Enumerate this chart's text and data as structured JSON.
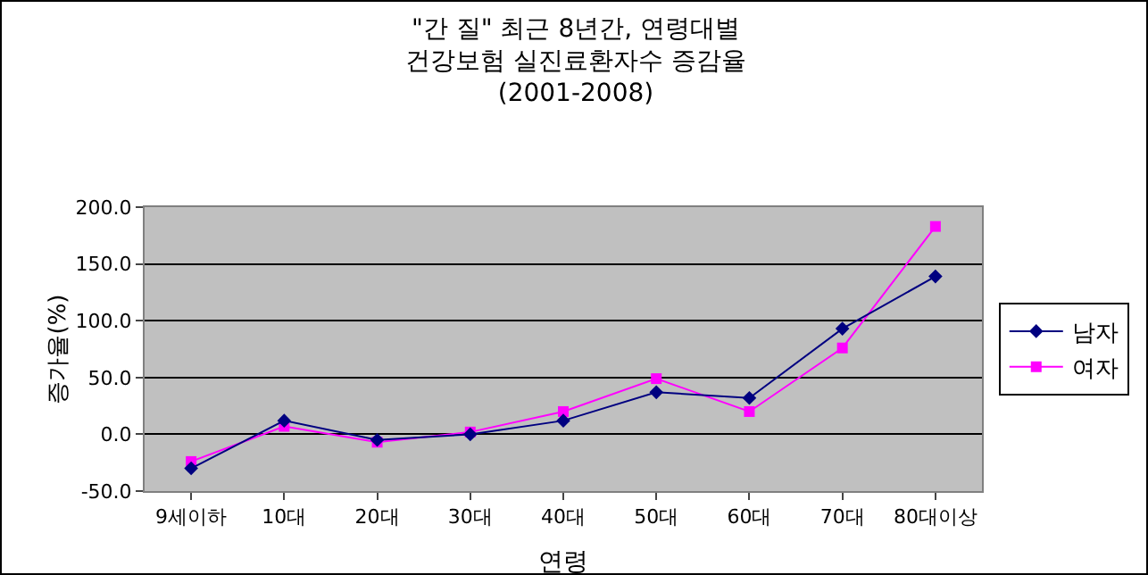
{
  "chart_data": {
    "type": "line",
    "title": "\"간 질\" 최근 8년간, 연령대별\n건강보험 실진료환자수 증감율\n(2001-2008)",
    "xlabel": "연령",
    "ylabel": "증가율(%)",
    "categories": [
      "9세이하",
      "10대",
      "20대",
      "30대",
      "40대",
      "50대",
      "60대",
      "70대",
      "80대이상"
    ],
    "series": [
      {
        "name": "남자",
        "color": "#000080",
        "marker": "diamond",
        "values": [
          -30,
          12,
          -5,
          0,
          12,
          37,
          32,
          93,
          139
        ]
      },
      {
        "name": "여자",
        "color": "#ff00ff",
        "marker": "square",
        "values": [
          -24,
          7,
          -7,
          2,
          20,
          49,
          20,
          76,
          183
        ]
      }
    ],
    "ylim": [
      -50,
      200
    ],
    "yticks": [
      {
        "value": -50,
        "label": "-50.0"
      },
      {
        "value": 0,
        "label": "0.0"
      },
      {
        "value": 50,
        "label": "50.0"
      },
      {
        "value": 100,
        "label": "100.0"
      },
      {
        "value": 150,
        "label": "150.0"
      },
      {
        "value": 200,
        "label": "200.0"
      }
    ],
    "grid": "y",
    "legend": "right",
    "line_style": "solid"
  }
}
